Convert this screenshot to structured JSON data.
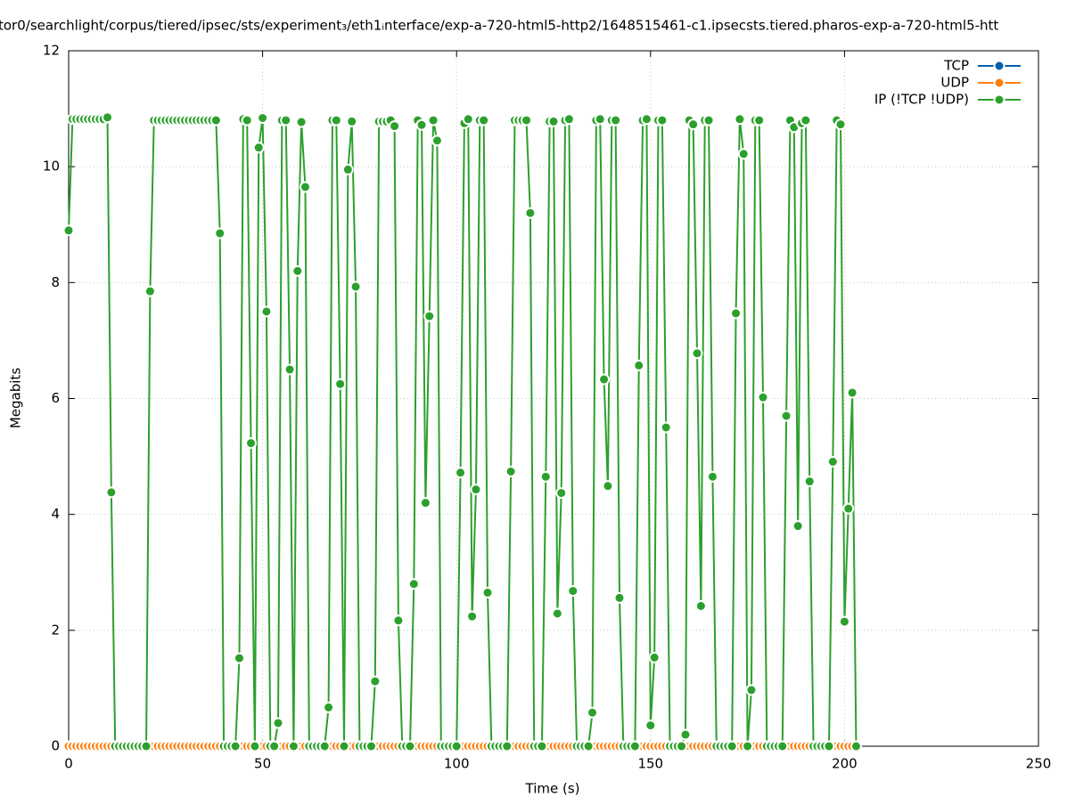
{
  "chart_data": {
    "type": "line",
    "title": "tor0/searchlight/corpus/tiered/ipsec/sts/experiment₃/eth1ᵢnterface/exp-a-720-html5-http2/1648515461-c1.ipsecsts.tiered.pharos-exp-a-720-html5-htt",
    "xlabel": "Time (s)",
    "ylabel": "Megabits",
    "x": [
      0,
      1,
      2,
      3,
      4,
      5,
      6,
      7,
      8,
      9,
      10,
      11,
      12,
      13,
      14,
      15,
      16,
      17,
      18,
      19,
      20,
      21,
      22,
      23,
      24,
      25,
      26,
      27,
      28,
      29,
      30,
      31,
      32,
      33,
      34,
      35,
      36,
      37,
      38,
      39,
      40,
      41,
      42,
      43,
      44,
      45,
      46,
      47,
      48,
      49,
      50,
      51,
      52,
      53,
      54,
      55,
      56,
      57,
      58,
      59,
      60,
      61,
      62,
      63,
      64,
      65,
      66,
      67,
      68,
      69,
      70,
      71,
      72,
      73,
      74,
      75,
      76,
      77,
      78,
      79,
      80,
      81,
      82,
      83,
      84,
      85,
      86,
      87,
      88,
      89,
      90,
      91,
      92,
      93,
      94,
      95,
      96,
      97,
      98,
      99,
      100,
      101,
      102,
      103,
      104,
      105,
      106,
      107,
      108,
      109,
      110,
      111,
      112,
      113,
      114,
      115,
      116,
      117,
      118,
      119,
      120,
      121,
      122,
      123,
      124,
      125,
      126,
      127,
      128,
      129,
      130,
      131,
      132,
      133,
      134,
      135,
      136,
      137,
      138,
      139,
      140,
      141,
      142,
      143,
      144,
      145,
      146,
      147,
      148,
      149,
      150,
      151,
      152,
      153,
      154,
      155,
      156,
      157,
      158,
      159,
      160,
      161,
      162,
      163,
      164,
      165,
      166,
      167,
      168,
      169,
      170,
      171,
      172,
      173,
      174,
      175,
      176,
      177,
      178,
      179,
      180,
      181,
      182,
      183,
      184,
      185,
      186,
      187,
      188,
      189,
      190,
      191,
      192,
      193,
      194,
      195,
      196,
      197,
      198,
      199,
      200,
      201,
      202,
      203
    ],
    "series": [
      {
        "name": "TCP",
        "color": "#0060ad",
        "values": [
          0,
          0,
          0,
          0,
          0,
          0,
          0,
          0,
          0,
          0,
          0,
          0,
          0,
          0,
          0,
          0,
          0,
          0,
          0,
          0,
          0,
          0,
          0,
          0,
          0,
          0,
          0,
          0,
          0,
          0,
          0,
          0,
          0,
          0,
          0,
          0,
          0,
          0,
          0,
          0,
          0,
          0,
          0,
          0,
          0,
          0,
          0,
          0,
          0,
          0,
          0,
          0,
          0,
          0,
          0,
          0,
          0,
          0,
          0,
          0,
          0,
          0,
          0,
          0,
          0,
          0,
          0,
          0,
          0,
          0,
          0,
          0,
          0,
          0,
          0,
          0,
          0,
          0,
          0,
          0,
          0,
          0,
          0,
          0,
          0,
          0,
          0,
          0,
          0,
          0,
          0,
          0,
          0,
          0,
          0,
          0,
          0,
          0,
          0,
          0,
          0,
          0,
          0,
          0,
          0,
          0,
          0,
          0,
          0,
          0,
          0,
          0,
          0,
          0,
          0,
          0,
          0,
          0,
          0,
          0,
          0,
          0,
          0,
          0,
          0,
          0,
          0,
          0,
          0,
          0,
          0,
          0,
          0,
          0,
          0,
          0,
          0,
          0,
          0,
          0,
          0,
          0,
          0,
          0,
          0,
          0,
          0,
          0,
          0,
          0,
          0,
          0,
          0,
          0,
          0,
          0,
          0,
          0,
          0,
          0,
          0,
          0,
          0,
          0,
          0,
          0,
          0,
          0,
          0,
          0,
          0,
          0,
          0,
          0,
          0,
          0,
          0,
          0,
          0,
          0,
          0,
          0,
          0,
          0,
          0,
          0,
          0,
          0,
          0,
          0,
          0,
          0,
          0,
          0,
          0,
          0,
          0,
          0,
          0,
          0,
          0,
          0,
          0,
          0
        ]
      },
      {
        "name": "UDP",
        "color": "#ff7f0e",
        "values": [
          0,
          0,
          0,
          0,
          0,
          0,
          0,
          0,
          0,
          0,
          0,
          0,
          0,
          0,
          0,
          0,
          0,
          0,
          0,
          0,
          0,
          0,
          0,
          0,
          0,
          0,
          0,
          0,
          0,
          0,
          0,
          0,
          0,
          0,
          0,
          0,
          0,
          0,
          0,
          0,
          0,
          0,
          0,
          0,
          0,
          0,
          0,
          0,
          0,
          0,
          0,
          0,
          0,
          0,
          0,
          0,
          0,
          0,
          0,
          0,
          0,
          0,
          0,
          0,
          0,
          0,
          0,
          0,
          0,
          0,
          0,
          0,
          0,
          0,
          0,
          0,
          0,
          0,
          0,
          0,
          0,
          0,
          0,
          0,
          0,
          0,
          0,
          0,
          0,
          0,
          0,
          0,
          0,
          0,
          0,
          0,
          0,
          0,
          0,
          0,
          0,
          0,
          0,
          0,
          0,
          0,
          0,
          0,
          0,
          0,
          0,
          0,
          0,
          0,
          0,
          0,
          0,
          0,
          0,
          0,
          0,
          0,
          0,
          0,
          0,
          0,
          0,
          0,
          0,
          0,
          0,
          0,
          0,
          0,
          0,
          0,
          0,
          0,
          0,
          0,
          0,
          0,
          0,
          0,
          0,
          0,
          0,
          0,
          0,
          0,
          0,
          0,
          0,
          0,
          0,
          0,
          0,
          0,
          0,
          0,
          0,
          0,
          0,
          0,
          0,
          0,
          0,
          0,
          0,
          0,
          0,
          0,
          0,
          0,
          0,
          0,
          0,
          0,
          0,
          0,
          0,
          0,
          0,
          0,
          0,
          0,
          0,
          0,
          0,
          0,
          0,
          0,
          0,
          0,
          0,
          0,
          0,
          0,
          0,
          0,
          0,
          0,
          0,
          0
        ]
      },
      {
        "name": "IP (!TCP  !UDP)",
        "color": "#2ca02c",
        "values": [
          8.9,
          10.82,
          10.82,
          10.82,
          10.82,
          10.82,
          10.82,
          10.82,
          10.82,
          10.82,
          10.85,
          4.38,
          0,
          0,
          0,
          0,
          0,
          0,
          0,
          0,
          0,
          7.85,
          10.8,
          10.8,
          10.8,
          10.8,
          10.8,
          10.8,
          10.8,
          10.8,
          10.8,
          10.8,
          10.8,
          10.8,
          10.8,
          10.8,
          10.8,
          10.8,
          10.8,
          8.85,
          0,
          0,
          0,
          0,
          1.52,
          10.82,
          10.8,
          5.23,
          0,
          10.33,
          10.84,
          7.5,
          0,
          0,
          0.4,
          10.8,
          10.8,
          6.5,
          0,
          8.2,
          10.77,
          9.65,
          0,
          0,
          0,
          0,
          0,
          0.67,
          10.8,
          10.8,
          6.25,
          0,
          9.95,
          10.78,
          7.93,
          0,
          0,
          0,
          0,
          1.12,
          10.78,
          10.78,
          10.78,
          10.8,
          10.7,
          2.17,
          0,
          0,
          0,
          2.8,
          10.8,
          10.72,
          4.2,
          7.42,
          10.8,
          10.45,
          0,
          0,
          0,
          0,
          0,
          4.72,
          10.75,
          10.82,
          2.24,
          4.43,
          10.8,
          10.8,
          2.65,
          0,
          0,
          0,
          0,
          0,
          4.74,
          10.8,
          10.8,
          10.8,
          10.8,
          9.2,
          0,
          0,
          0,
          4.65,
          10.78,
          10.78,
          2.29,
          4.37,
          10.8,
          10.82,
          2.68,
          0,
          0,
          0,
          0,
          0.58,
          10.8,
          10.82,
          6.33,
          4.49,
          10.8,
          10.8,
          2.56,
          0,
          0,
          0,
          0,
          6.57,
          10.8,
          10.82,
          0.36,
          1.53,
          10.8,
          10.8,
          5.5,
          0,
          0,
          0,
          0,
          0.2,
          10.8,
          10.73,
          6.78,
          2.42,
          10.8,
          10.8,
          4.65,
          0,
          0,
          0,
          0,
          0,
          7.47,
          10.82,
          10.22,
          0,
          0.97,
          10.8,
          10.8,
          6.02,
          0,
          0,
          0,
          0,
          0,
          5.7,
          10.8,
          10.68,
          3.8,
          10.75,
          10.8,
          4.57,
          0,
          0,
          0,
          0,
          0,
          4.91,
          10.8,
          10.73,
          2.15,
          4.1,
          6.1,
          0
        ]
      }
    ],
    "xlim": [
      0,
      250
    ],
    "xticks": [
      0,
      50,
      100,
      150,
      200,
      250
    ],
    "ylim": [
      0,
      12
    ],
    "yticks": [
      0,
      2,
      4,
      6,
      8,
      10,
      12
    ],
    "grid": true,
    "legend": "top-right"
  }
}
